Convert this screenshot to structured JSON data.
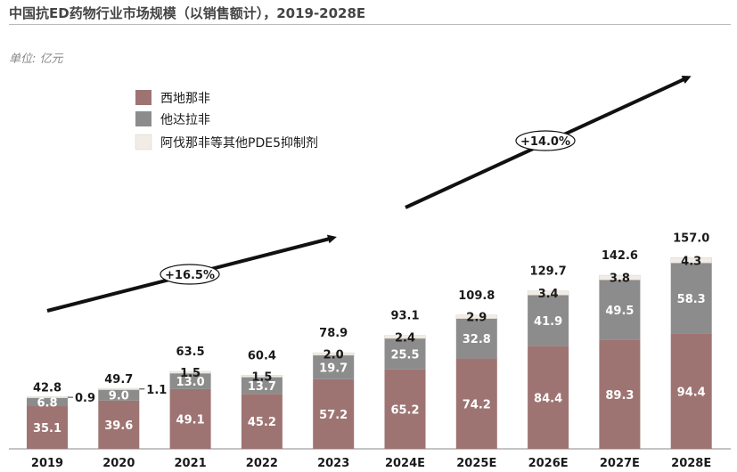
{
  "header": {
    "title": "中国抗ED药物行业市场规模（以销售额计），2019-2028E",
    "unit": "单位:  亿元"
  },
  "colors": {
    "sildenafil": "#9e7472",
    "tadalafil": "#8c8c8c",
    "other": "#f1ede6",
    "text": "#1a1a1a"
  },
  "chart_data": {
    "type": "bar",
    "stacked": true,
    "categories": [
      "2019",
      "2020",
      "2021",
      "2022",
      "2023",
      "2024E",
      "2025E",
      "2026E",
      "2027E",
      "2028E"
    ],
    "series": [
      {
        "name": "西地那非",
        "values": [
          35.1,
          39.6,
          49.1,
          45.2,
          57.2,
          65.2,
          74.2,
          84.4,
          89.3,
          94.4
        ]
      },
      {
        "name": "他达拉非",
        "values": [
          6.8,
          9.0,
          13.0,
          13.7,
          19.7,
          25.5,
          32.8,
          41.9,
          49.5,
          58.3
        ]
      },
      {
        "name": "阿伐那非等其他PDE5抑制剂",
        "values": [
          0.9,
          1.1,
          1.5,
          1.5,
          2.0,
          2.4,
          2.9,
          3.4,
          3.8,
          4.3
        ]
      }
    ],
    "totals": [
      "42.8",
      "49.7",
      "63.5",
      "60.4",
      "78.9",
      "93.1",
      "109.8",
      "129.7",
      "142.6",
      "157.0"
    ],
    "segment_labels": [
      [
        "35.1",
        "6.8",
        "0.9"
      ],
      [
        "39.6",
        "9.0",
        "1.1"
      ],
      [
        "49.1",
        "13.0",
        "1.5"
      ],
      [
        "45.2",
        "13.7",
        "1.5"
      ],
      [
        "57.2",
        "19.7",
        "2.0"
      ],
      [
        "65.2",
        "25.5",
        "2.4"
      ],
      [
        "74.2",
        "32.8",
        "2.9"
      ],
      [
        "84.4",
        "41.9",
        "3.4"
      ],
      [
        "89.3",
        "49.5",
        "3.8"
      ],
      [
        "94.4",
        "58.3",
        "4.3"
      ]
    ],
    "annotations": [
      {
        "text": "+16.5%",
        "from": "2019",
        "to": "2023"
      },
      {
        "text": "+14.0%",
        "from": "2024E",
        "to": "2028E"
      }
    ],
    "legend_position": "top-left",
    "grid": false,
    "ylim": [
      0,
      170
    ]
  }
}
